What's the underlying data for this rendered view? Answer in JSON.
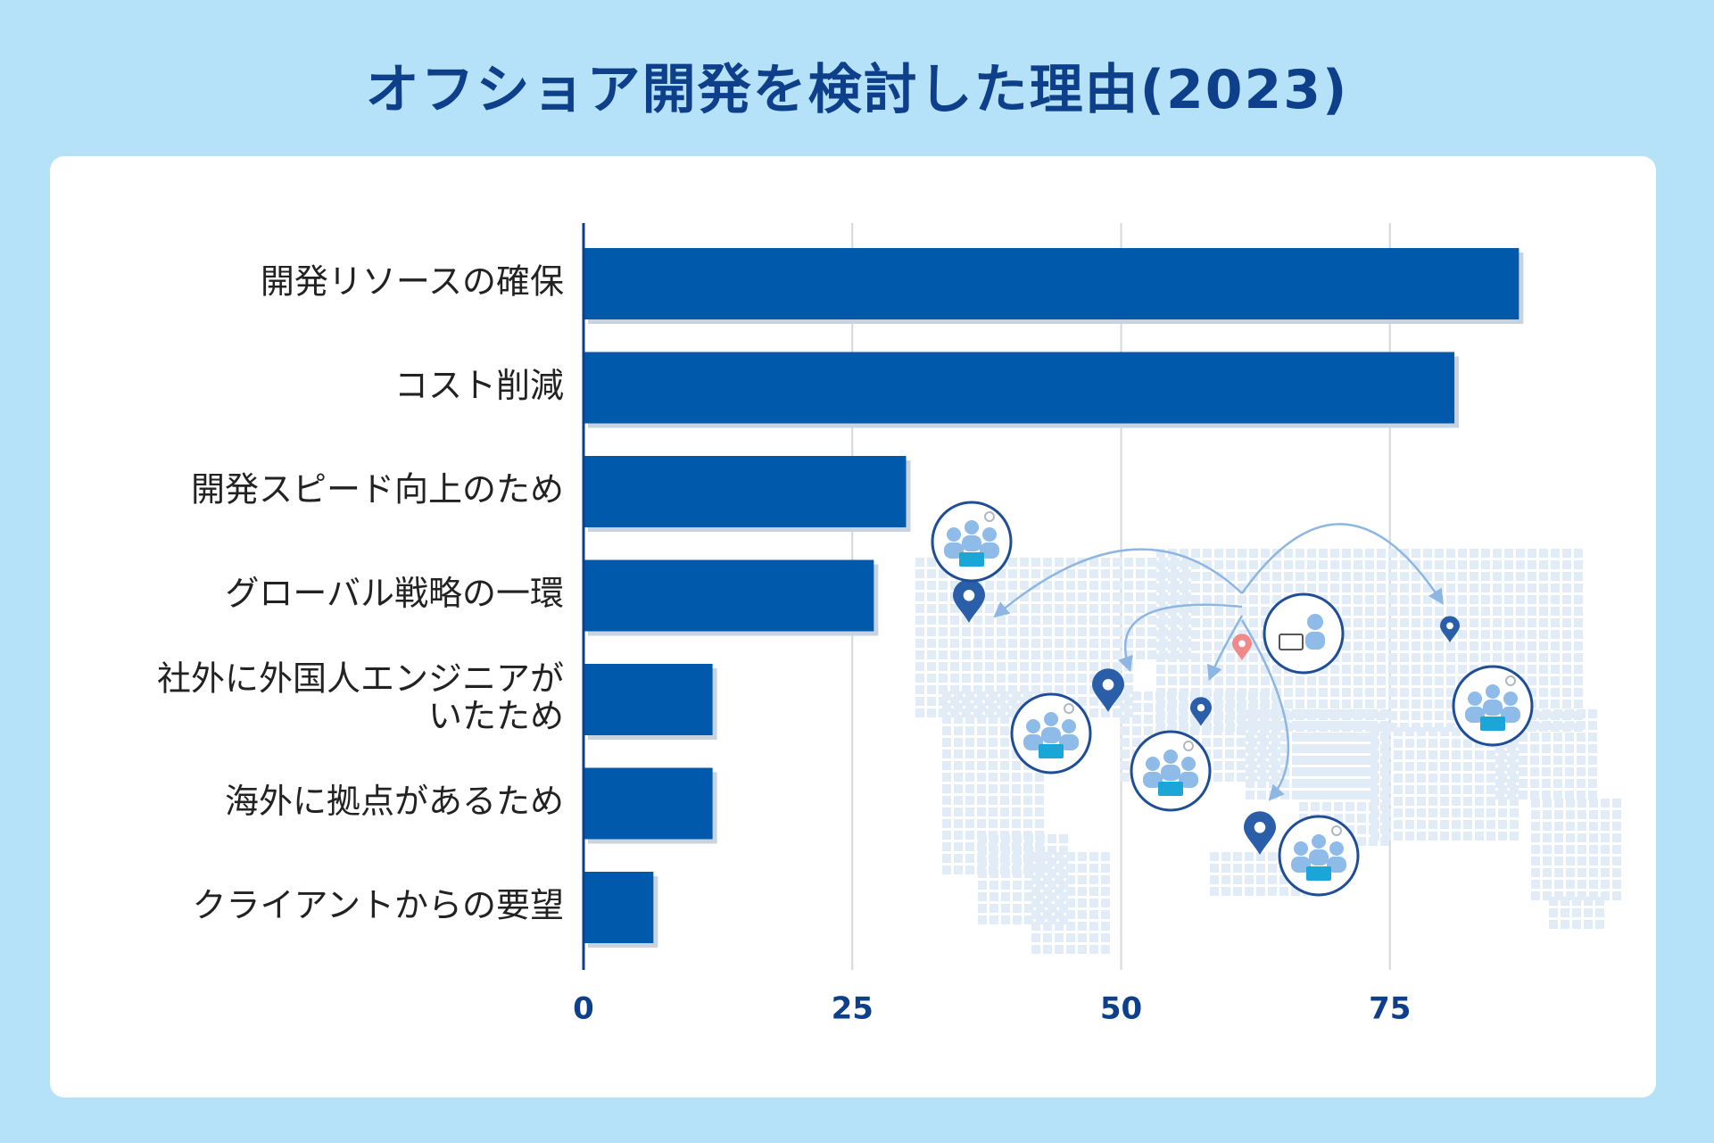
{
  "title": "オフショア開発を検討した理由(2023)",
  "colors": {
    "background": "#b5e2f8",
    "bar": "#0059aa",
    "bar_shadow": "#c9d3df",
    "title": "#0d3f8a",
    "pin_dark": "#2b5ea8",
    "pin_origin": "#f08a8a"
  },
  "chart_data": {
    "type": "bar",
    "orientation": "horizontal",
    "title": "オフショア開発を検討した理由(2023)",
    "categories": [
      [
        "開発リソースの確保"
      ],
      [
        "コスト削減"
      ],
      [
        "開発スピード向上のため"
      ],
      [
        "グローバル戦略の一環"
      ],
      [
        "社外に外国人エンジニアが",
        "いたため"
      ],
      [
        "海外に拠点があるため"
      ],
      [
        "クライアントからの要望"
      ]
    ],
    "values": [
      87,
      81,
      30,
      27,
      12,
      12,
      6.5
    ],
    "xlim": [
      0,
      100
    ],
    "xticks": [
      "0",
      "25",
      "50",
      "75"
    ],
    "xtick_values": [
      0,
      25,
      50,
      75
    ],
    "xlabel": "",
    "ylabel": "",
    "grid": true,
    "legend": "none"
  }
}
